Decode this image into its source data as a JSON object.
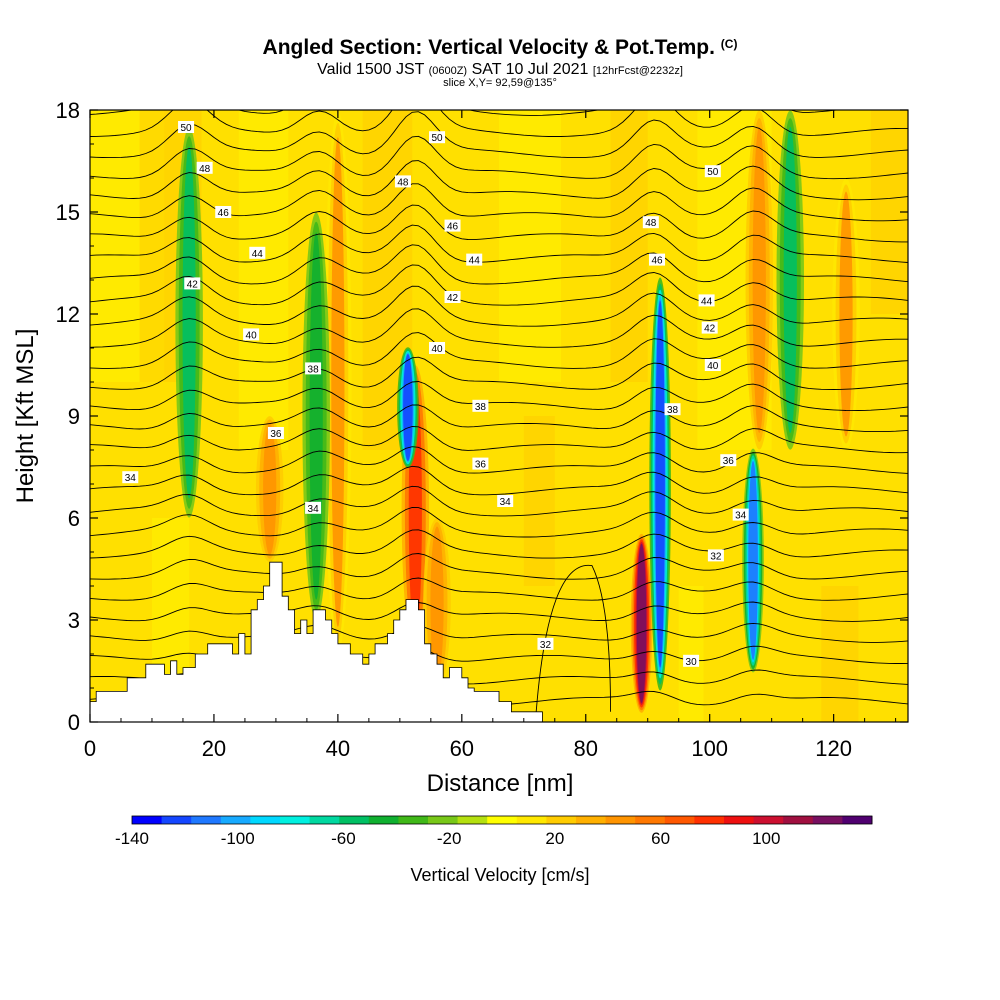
{
  "header": {
    "title": "Angled Section: Vertical Velocity & Pot.Temp.",
    "title_tag": "(C)",
    "valid_prefix": "Valid 1500 JST",
    "valid_utc": "(0600Z)",
    "valid_date": "SAT 10 Jul 2021",
    "forecast": "[12hrFcst@2232z]",
    "slice": "slice X,Y= 92,59@135°"
  },
  "chart_data": {
    "type": "heatmap",
    "xlabel": "Distance [nm]",
    "ylabel": "Height [Kft MSL]",
    "xlim": [
      0,
      132
    ],
    "ylim": [
      0,
      18
    ],
    "x_ticks": [
      0,
      20,
      40,
      60,
      80,
      100,
      120
    ],
    "y_ticks": [
      0,
      3,
      6,
      9,
      12,
      15,
      18
    ],
    "colorbar": {
      "label": "Vertical Velocity [cm/s]",
      "range": [
        -140,
        140
      ],
      "tick_labels": [
        -140,
        -100,
        -60,
        -20,
        20,
        60,
        100
      ],
      "colors": [
        "#0000ff",
        "#1446ff",
        "#1f78ff",
        "#17aaff",
        "#00d8ff",
        "#00f0e0",
        "#00d8a0",
        "#00c064",
        "#10b030",
        "#40b818",
        "#78c818",
        "#b4e010",
        "#ffff00",
        "#ffe800",
        "#ffcc00",
        "#ffb000",
        "#ff9400",
        "#ff7800",
        "#ff5800",
        "#ff3000",
        "#ee1010",
        "#cc1030",
        "#a01040",
        "#781060",
        "#500070"
      ]
    },
    "updrafts": [
      {
        "x": 29,
        "bottom": 4.7,
        "top": 9.0,
        "peak_cm_s": 50
      },
      {
        "x": 40,
        "bottom": 2.0,
        "top": 18,
        "peak_cm_s": 40
      },
      {
        "x": 52.5,
        "bottom": 2.0,
        "top": 10.5,
        "peak_cm_s": 80
      },
      {
        "x": 56,
        "bottom": 1.0,
        "top": 6.0,
        "peak_cm_s": 50
      },
      {
        "x": 89,
        "bottom": 0.3,
        "top": 5.5,
        "peak_cm_s": 120
      },
      {
        "x": 108,
        "bottom": 8.0,
        "top": 18,
        "peak_cm_s": 50
      },
      {
        "x": 122,
        "bottom": 8.0,
        "top": 16,
        "peak_cm_s": 40
      }
    ],
    "downdrafts": [
      {
        "x": 16,
        "bottom": 6.0,
        "top": 17.5,
        "peak_cm_s": -60
      },
      {
        "x": 36.5,
        "bottom": 3.0,
        "top": 15.0,
        "peak_cm_s": -50
      },
      {
        "x": 51.3,
        "bottom": 7.5,
        "top": 11.0,
        "peak_cm_s": -120
      },
      {
        "x": 92,
        "bottom": 1.0,
        "top": 13.0,
        "peak_cm_s": -120
      },
      {
        "x": 107,
        "bottom": 1.5,
        "top": 8.0,
        "peak_cm_s": -110
      },
      {
        "x": 113,
        "bottom": 8.0,
        "top": 18,
        "peak_cm_s": -60
      }
    ],
    "theta_contour_labels": [
      {
        "text": "50",
        "x": 15.5,
        "y": 17.5
      },
      {
        "text": "48",
        "x": 18.5,
        "y": 16.3
      },
      {
        "text": "46",
        "x": 21.5,
        "y": 15.0
      },
      {
        "text": "44",
        "x": 27,
        "y": 13.8
      },
      {
        "text": "42",
        "x": 16.5,
        "y": 12.9
      },
      {
        "text": "40",
        "x": 26,
        "y": 11.4
      },
      {
        "text": "38",
        "x": 36,
        "y": 10.4
      },
      {
        "text": "36",
        "x": 30,
        "y": 8.5
      },
      {
        "text": "34",
        "x": 36,
        "y": 6.3
      },
      {
        "text": "34",
        "x": 6.5,
        "y": 7.2
      },
      {
        "text": "50",
        "x": 56,
        "y": 17.2
      },
      {
        "text": "48",
        "x": 50.5,
        "y": 15.9
      },
      {
        "text": "46",
        "x": 58.5,
        "y": 14.6
      },
      {
        "text": "44",
        "x": 62,
        "y": 13.6
      },
      {
        "text": "42",
        "x": 58.5,
        "y": 12.5
      },
      {
        "text": "40",
        "x": 56,
        "y": 11.0
      },
      {
        "text": "38",
        "x": 63,
        "y": 9.3
      },
      {
        "text": "36",
        "x": 63,
        "y": 7.6
      },
      {
        "text": "34",
        "x": 67,
        "y": 6.5
      },
      {
        "text": "32",
        "x": 73.5,
        "y": 2.3
      },
      {
        "text": "50",
        "x": 100.5,
        "y": 16.2
      },
      {
        "text": "48",
        "x": 90.5,
        "y": 14.7
      },
      {
        "text": "46",
        "x": 91.5,
        "y": 13.6
      },
      {
        "text": "44",
        "x": 99.5,
        "y": 12.4
      },
      {
        "text": "42",
        "x": 100,
        "y": 11.6
      },
      {
        "text": "40",
        "x": 100.5,
        "y": 10.5
      },
      {
        "text": "38",
        "x": 94,
        "y": 9.2
      },
      {
        "text": "36",
        "x": 103,
        "y": 7.7
      },
      {
        "text": "34",
        "x": 105,
        "y": 6.1
      },
      {
        "text": "32",
        "x": 101,
        "y": 4.9
      },
      {
        "text": "30",
        "x": 97,
        "y": 1.8
      }
    ],
    "terrain": [
      [
        0,
        0.6
      ],
      [
        1,
        0.6
      ],
      [
        1,
        0.9
      ],
      [
        6,
        0.9
      ],
      [
        6,
        1.3
      ],
      [
        9,
        1.3
      ],
      [
        9,
        1.7
      ],
      [
        12,
        1.7
      ],
      [
        12,
        1.4
      ],
      [
        13,
        1.4
      ],
      [
        13,
        1.8
      ],
      [
        14,
        1.8
      ],
      [
        14,
        1.4
      ],
      [
        15,
        1.4
      ],
      [
        15,
        1.6
      ],
      [
        17,
        1.6
      ],
      [
        17,
        2.0
      ],
      [
        19,
        2.0
      ],
      [
        19,
        2.3
      ],
      [
        23,
        2.3
      ],
      [
        23,
        2.0
      ],
      [
        24,
        2.0
      ],
      [
        24,
        2.6
      ],
      [
        25,
        2.6
      ],
      [
        25,
        2.0
      ],
      [
        26,
        2.0
      ],
      [
        26,
        3.3
      ],
      [
        27,
        3.3
      ],
      [
        27,
        3.6
      ],
      [
        28,
        3.6
      ],
      [
        28,
        4.0
      ],
      [
        29,
        4.0
      ],
      [
        29,
        4.7
      ],
      [
        31,
        4.7
      ],
      [
        31,
        3.7
      ],
      [
        32,
        3.7
      ],
      [
        32,
        3.3
      ],
      [
        33,
        3.3
      ],
      [
        33,
        2.6
      ],
      [
        34,
        2.6
      ],
      [
        34,
        3.0
      ],
      [
        35,
        3.0
      ],
      [
        35,
        2.6
      ],
      [
        36,
        2.6
      ],
      [
        36,
        3.3
      ],
      [
        38,
        3.3
      ],
      [
        38,
        3.0
      ],
      [
        39,
        3.0
      ],
      [
        39,
        2.6
      ],
      [
        40,
        2.6
      ],
      [
        40,
        2.3
      ],
      [
        42,
        2.3
      ],
      [
        42,
        2.0
      ],
      [
        44,
        2.0
      ],
      [
        44,
        1.7
      ],
      [
        45,
        1.7
      ],
      [
        45,
        2.0
      ],
      [
        46,
        2.0
      ],
      [
        46,
        2.3
      ],
      [
        48,
        2.3
      ],
      [
        48,
        2.6
      ],
      [
        49,
        2.6
      ],
      [
        49,
        3.0
      ],
      [
        50,
        3.0
      ],
      [
        50,
        3.3
      ],
      [
        51,
        3.3
      ],
      [
        51,
        3.6
      ],
      [
        53,
        3.6
      ],
      [
        53,
        3.3
      ],
      [
        54,
        3.3
      ],
      [
        54,
        2.3
      ],
      [
        55,
        2.3
      ],
      [
        55,
        2.0
      ],
      [
        56,
        2.0
      ],
      [
        56,
        1.7
      ],
      [
        57,
        1.7
      ],
      [
        57,
        1.3
      ],
      [
        58,
        1.3
      ],
      [
        58,
        1.6
      ],
      [
        60,
        1.6
      ],
      [
        60,
        1.3
      ],
      [
        61,
        1.3
      ],
      [
        61,
        1.0
      ],
      [
        62,
        1.0
      ],
      [
        62,
        0.9
      ],
      [
        66,
        0.9
      ],
      [
        66,
        0.6
      ],
      [
        68,
        0.6
      ],
      [
        68,
        0.3
      ],
      [
        73,
        0.3
      ],
      [
        73,
        0.0
      ]
    ]
  }
}
